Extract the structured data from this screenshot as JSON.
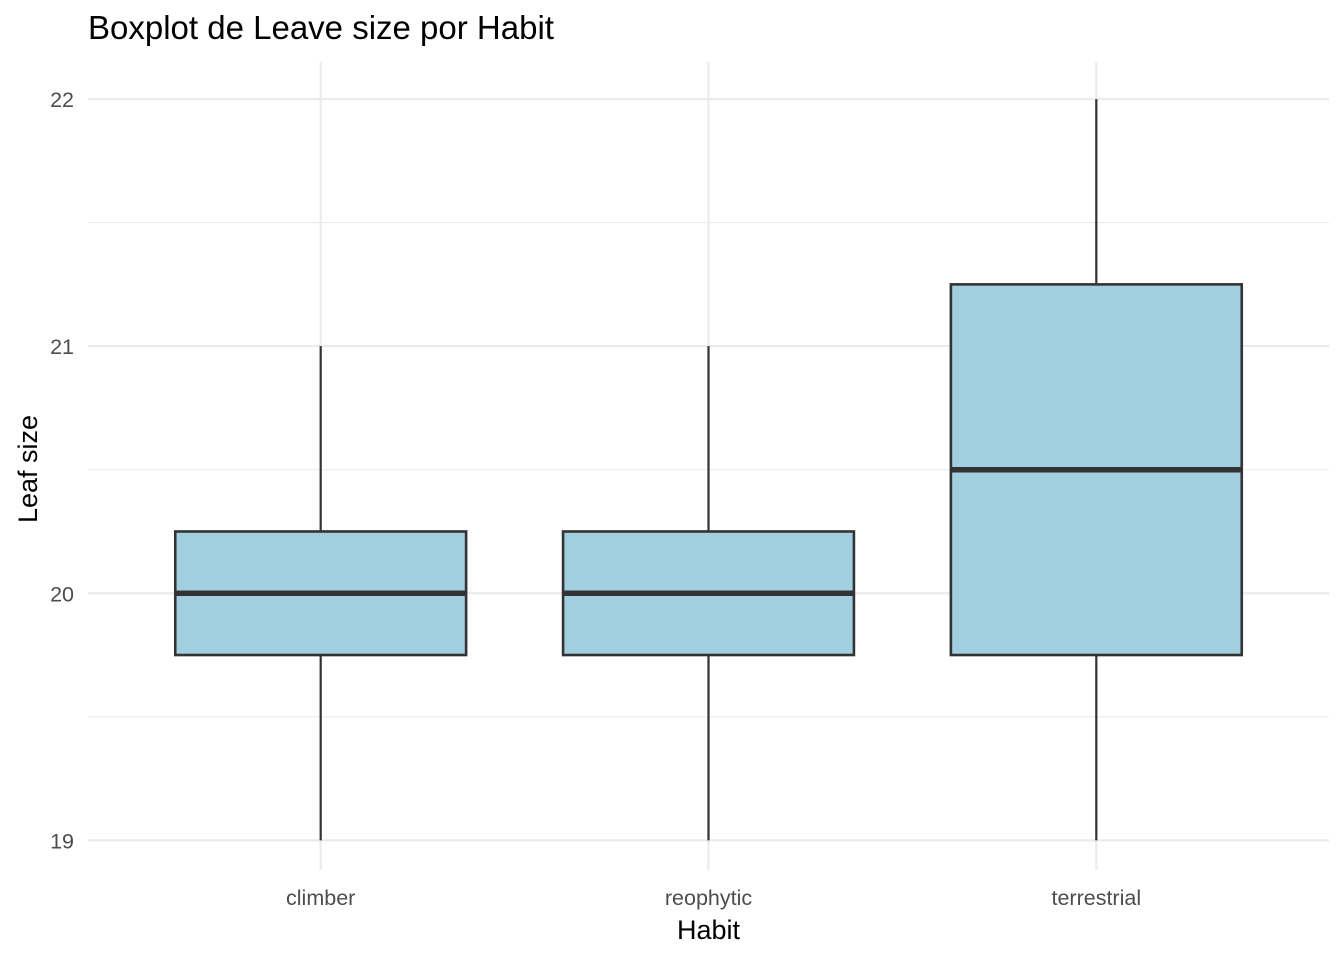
{
  "chart_data": {
    "type": "boxplot",
    "title": "Boxplot de Leave size por Habit",
    "xlabel": "Habit",
    "ylabel": "Leaf size",
    "categories": [
      "climber",
      "reophytic",
      "terrestrial"
    ],
    "boxes": [
      {
        "category": "climber",
        "min": 19,
        "q1": 19.75,
        "median": 20,
        "q3": 20.25,
        "max": 21
      },
      {
        "category": "reophytic",
        "min": 19,
        "q1": 19.75,
        "median": 20,
        "q3": 20.25,
        "max": 21
      },
      {
        "category": "terrestrial",
        "min": 19,
        "q1": 19.75,
        "median": 20.5,
        "q3": 21.25,
        "max": 22
      }
    ],
    "ylim": [
      18.88,
      22.15
    ],
    "yticks": [
      19,
      20,
      21,
      22
    ],
    "ytick_labels": [
      "19",
      "20",
      "21",
      "22"
    ],
    "y_minor_ticks": [
      19.5,
      20.5,
      21.5
    ],
    "box_fill": "#a1cfe0",
    "line_color": "#333333",
    "grid_color": "#ebebeb",
    "grid": true,
    "legend": "none"
  }
}
